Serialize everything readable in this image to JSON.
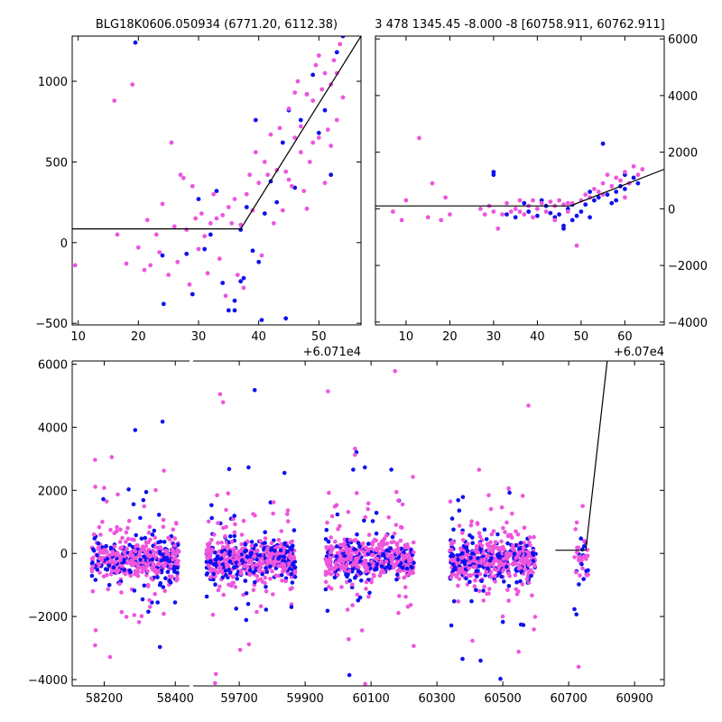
{
  "chart_data": [
    {
      "id": "top-left",
      "type": "scatter",
      "title": "BLG18K0606.050934 (6771.20, 6112.38)",
      "xlim": [
        9,
        57
      ],
      "ylim": [
        -510,
        1280
      ],
      "x_offset_label": "+6.071e4",
      "xticks": [
        10,
        20,
        30,
        40,
        50
      ],
      "xtick_labels": [
        "10",
        "20",
        "30",
        "40",
        "50"
      ],
      "yticks": [
        -500,
        0,
        500,
        1000
      ],
      "ytick_labels": [
        "−500",
        "0",
        "500",
        "1000"
      ],
      "y_axis_side": "left",
      "model_line": {
        "x": [
          9,
          37,
          57
        ],
        "y": [
          85,
          85,
          1280
        ]
      },
      "series": [
        {
          "color": "#1010ee",
          "points": [
            [
              19.5,
              1240
            ],
            [
              24,
              -80
            ],
            [
              24.2,
              -380
            ],
            [
              28,
              -70
            ],
            [
              29,
              -320
            ],
            [
              30,
              270
            ],
            [
              31,
              -40
            ],
            [
              32,
              50
            ],
            [
              33,
              320
            ],
            [
              34,
              -250
            ],
            [
              35,
              -420
            ],
            [
              36,
              -360
            ],
            [
              37,
              80
            ],
            [
              37.5,
              -220
            ],
            [
              38,
              220
            ],
            [
              39,
              -50
            ],
            [
              39.5,
              760
            ],
            [
              40,
              -120
            ],
            [
              40.5,
              -480
            ],
            [
              41,
              180
            ],
            [
              42,
              380
            ],
            [
              43,
              250
            ],
            [
              44,
              620
            ],
            [
              44.5,
              -470
            ],
            [
              45,
              820
            ],
            [
              46,
              340
            ],
            [
              47,
              760
            ],
            [
              48,
              920
            ],
            [
              49,
              1040
            ],
            [
              50,
              680
            ],
            [
              51,
              820
            ],
            [
              52,
              420
            ],
            [
              53,
              1180
            ],
            [
              54,
              1280
            ],
            [
              36,
              -420
            ],
            [
              37,
              -240
            ]
          ]
        },
        {
          "color": "#ee55dd",
          "points": [
            [
              9.5,
              -140
            ],
            [
              16,
              880
            ],
            [
              16.5,
              50
            ],
            [
              18,
              -130
            ],
            [
              19,
              980
            ],
            [
              20,
              -30
            ],
            [
              21,
              -170
            ],
            [
              21.5,
              140
            ],
            [
              22,
              -140
            ],
            [
              23,
              50
            ],
            [
              23.5,
              -60
            ],
            [
              24,
              240
            ],
            [
              25,
              -200
            ],
            [
              25.5,
              620
            ],
            [
              26,
              100
            ],
            [
              26.5,
              -120
            ],
            [
              27,
              420
            ],
            [
              27.5,
              400
            ],
            [
              28,
              80
            ],
            [
              28.5,
              -260
            ],
            [
              29,
              350
            ],
            [
              29.5,
              150
            ],
            [
              30,
              -40
            ],
            [
              30.5,
              180
            ],
            [
              31,
              40
            ],
            [
              31.5,
              -190
            ],
            [
              32,
              120
            ],
            [
              32.5,
              300
            ],
            [
              33,
              150
            ],
            [
              33.5,
              -100
            ],
            [
              34,
              170
            ],
            [
              34.5,
              -330
            ],
            [
              35,
              220
            ],
            [
              35.5,
              120
            ],
            [
              36,
              270
            ],
            [
              36.5,
              -200
            ],
            [
              37,
              110
            ],
            [
              37.5,
              -280
            ],
            [
              38,
              300
            ],
            [
              38.5,
              420
            ],
            [
              39,
              200
            ],
            [
              39.5,
              560
            ],
            [
              40,
              370
            ],
            [
              40.5,
              -80
            ],
            [
              41,
              500
            ],
            [
              41.5,
              420
            ],
            [
              42,
              670
            ],
            [
              42.5,
              120
            ],
            [
              43,
              450
            ],
            [
              43.5,
              710
            ],
            [
              44,
              200
            ],
            [
              44.5,
              440
            ],
            [
              45,
              830
            ],
            [
              45.5,
              350
            ],
            [
              46,
              650
            ],
            [
              46.5,
              1000
            ],
            [
              47,
              720
            ],
            [
              47.5,
              320
            ],
            [
              48,
              920
            ],
            [
              48.5,
              500
            ],
            [
              49,
              880
            ],
            [
              49.5,
              1100
            ],
            [
              50,
              650
            ],
            [
              50.5,
              950
            ],
            [
              51,
              1050
            ],
            [
              51.5,
              700
            ],
            [
              52,
              980
            ],
            [
              52.5,
              1130
            ],
            [
              53,
              760
            ],
            [
              53.5,
              1230
            ],
            [
              54,
              900
            ],
            [
              49,
              620
            ],
            [
              47,
              560
            ],
            [
              45,
              390
            ],
            [
              51,
              370
            ],
            [
              48,
              210
            ],
            [
              46,
              930
            ],
            [
              50,
              1160
            ],
            [
              52,
              600
            ],
            [
              53,
              1050
            ]
          ]
        }
      ]
    },
    {
      "id": "top-right",
      "type": "scatter",
      "title": "3 478 1345.45 -8.000 -8 [60758.911, 60762.911]",
      "xlim": [
        3,
        69
      ],
      "ylim": [
        -4100,
        6100
      ],
      "x_offset_label": "+6.07e4",
      "xticks": [
        10,
        20,
        30,
        40,
        50,
        60
      ],
      "xtick_labels": [
        "10",
        "20",
        "30",
        "40",
        "50",
        "60"
      ],
      "yticks": [
        -4000,
        -2000,
        0,
        2000,
        4000,
        6000
      ],
      "ytick_labels": [
        "−4000",
        "−2000",
        "0",
        "2000",
        "4000",
        "6000"
      ],
      "y_axis_side": "right",
      "model_line": {
        "x": [
          3,
          47.5,
          69
        ],
        "y": [
          100,
          100,
          1400
        ]
      },
      "series": [
        {
          "color": "#1010ee",
          "points": [
            [
              30,
              1200
            ],
            [
              30,
              1300
            ],
            [
              33,
              -200
            ],
            [
              35,
              -300
            ],
            [
              38,
              -100
            ],
            [
              40,
              -250
            ],
            [
              42,
              100
            ],
            [
              43,
              -150
            ],
            [
              44,
              -300
            ],
            [
              45,
              -200
            ],
            [
              46,
              -600
            ],
            [
              46,
              -700
            ],
            [
              47,
              0
            ],
            [
              48,
              -400
            ],
            [
              49,
              -250
            ],
            [
              50,
              -100
            ],
            [
              51,
              150
            ],
            [
              52,
              -300
            ],
            [
              53,
              300
            ],
            [
              54,
              400
            ],
            [
              55,
              2300
            ],
            [
              56,
              500
            ],
            [
              57,
              200
            ],
            [
              58,
              600
            ],
            [
              59,
              800
            ],
            [
              60,
              700
            ],
            [
              61,
              900
            ],
            [
              62,
              1100
            ],
            [
              37,
              200
            ],
            [
              41,
              300
            ],
            [
              48,
              150
            ],
            [
              52,
              600
            ],
            [
              58,
              300
            ],
            [
              60,
              1200
            ],
            [
              63,
              900
            ]
          ]
        },
        {
          "color": "#ee55dd",
          "points": [
            [
              7,
              -100
            ],
            [
              9,
              -400
            ],
            [
              10,
              300
            ],
            [
              13,
              2500
            ],
            [
              15,
              -300
            ],
            [
              16,
              900
            ],
            [
              18,
              -400
            ],
            [
              19,
              400
            ],
            [
              20,
              -200
            ],
            [
              27,
              0
            ],
            [
              28,
              -200
            ],
            [
              29,
              100
            ],
            [
              30,
              -100
            ],
            [
              31,
              -700
            ],
            [
              32,
              -200
            ],
            [
              33,
              200
            ],
            [
              34,
              -100
            ],
            [
              35,
              0
            ],
            [
              36,
              300
            ],
            [
              37,
              -200
            ],
            [
              38,
              100
            ],
            [
              39,
              300
            ],
            [
              40,
              0
            ],
            [
              41,
              200
            ],
            [
              42,
              -100
            ],
            [
              43,
              250
            ],
            [
              44,
              100
            ],
            [
              45,
              300
            ],
            [
              46,
              150
            ],
            [
              47,
              -100
            ],
            [
              48,
              200
            ],
            [
              49,
              -1300
            ],
            [
              50,
              300
            ],
            [
              51,
              500
            ],
            [
              52,
              400
            ],
            [
              53,
              700
            ],
            [
              54,
              600
            ],
            [
              55,
              900
            ],
            [
              56,
              1200
            ],
            [
              57,
              800
            ],
            [
              58,
              1100
            ],
            [
              59,
              1000
            ],
            [
              60,
              1300
            ],
            [
              61,
              900
            ],
            [
              62,
              1500
            ],
            [
              63,
              1200
            ],
            [
              64,
              1400
            ],
            [
              36,
              -100
            ],
            [
              39,
              -300
            ],
            [
              44,
              -400
            ],
            [
              47,
              200
            ],
            [
              55,
              500
            ],
            [
              60,
              400
            ]
          ]
        }
      ]
    },
    {
      "id": "bottom",
      "type": "scatter",
      "title": "",
      "ylim": [
        -4200,
        6100
      ],
      "yticks": [
        -4000,
        -2000,
        0,
        2000,
        4000,
        6000
      ],
      "ytick_labels": [
        "−4000",
        "−2000",
        "0",
        "2000",
        "4000",
        "6000"
      ],
      "y_axis_side": "left",
      "segments": [
        {
          "xlim": [
            58110,
            58440
          ],
          "xticks": [
            58200,
            58400
          ],
          "xtick_labels": [
            "58200",
            "58400"
          ],
          "season": [
            58165,
            58410
          ]
        },
        {
          "xlim": [
            59560,
            60990
          ],
          "xticks": [
            59700,
            59900,
            60100,
            60300,
            60500,
            60700,
            60900
          ],
          "xtick_labels": [
            "59700",
            "59900",
            "60100",
            "60300",
            "60500",
            "60700",
            "60900"
          ],
          "seasons": [
            [
              59600,
              59870
            ],
            [
              59960,
              60230
            ],
            [
              60340,
              60600
            ],
            [
              60715,
              60760
            ]
          ]
        }
      ],
      "model_line": {
        "x": [
          60660,
          60752,
          60817
        ],
        "y": [
          100,
          100,
          6100
        ]
      },
      "series": [
        {
          "name": "",
          "color": "#1010ee"
        },
        {
          "name": "",
          "color": "#ee55dd"
        }
      ]
    }
  ]
}
